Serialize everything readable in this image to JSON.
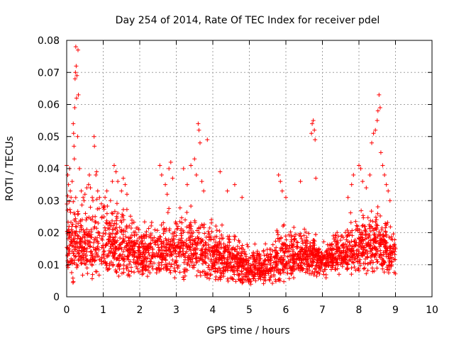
{
  "chart_data": {
    "type": "scatter",
    "title": "Day 254 of 2014, Rate Of TEC Index for receiver pdel",
    "xlabel": "GPS time / hours",
    "ylabel": "ROTI / TECUs",
    "xlim": [
      0,
      10
    ],
    "ylim": [
      0,
      0.08
    ],
    "xticks": [
      0,
      1,
      2,
      3,
      4,
      5,
      6,
      7,
      8,
      9,
      10
    ],
    "yticks": [
      0,
      0.01,
      0.02,
      0.03,
      0.04,
      0.05,
      0.06,
      0.07,
      0.08
    ],
    "ytick_labels": [
      "0",
      "0.01",
      "0.02",
      "0.03",
      "0.04",
      "0.05",
      "0.06",
      "0.07",
      "0.08"
    ],
    "grid": true,
    "marker": "+",
    "marker_color": "#ff0000",
    "data_extent_hours": [
      0,
      9
    ],
    "density_profile": [
      {
        "x": 0.0,
        "lo": 0.003,
        "hi": 0.03
      },
      {
        "x": 0.5,
        "lo": 0.004,
        "hi": 0.027
      },
      {
        "x": 1.0,
        "lo": 0.004,
        "hi": 0.03
      },
      {
        "x": 1.5,
        "lo": 0.005,
        "hi": 0.026
      },
      {
        "x": 2.0,
        "lo": 0.005,
        "hi": 0.022
      },
      {
        "x": 2.5,
        "lo": 0.005,
        "hi": 0.022
      },
      {
        "x": 3.0,
        "lo": 0.005,
        "hi": 0.026
      },
      {
        "x": 3.5,
        "lo": 0.005,
        "hi": 0.026
      },
      {
        "x": 4.0,
        "lo": 0.004,
        "hi": 0.022
      },
      {
        "x": 4.5,
        "lo": 0.004,
        "hi": 0.019
      },
      {
        "x": 5.0,
        "lo": 0.003,
        "hi": 0.015
      },
      {
        "x": 5.5,
        "lo": 0.003,
        "hi": 0.016
      },
      {
        "x": 6.0,
        "lo": 0.004,
        "hi": 0.022
      },
      {
        "x": 6.5,
        "lo": 0.005,
        "hi": 0.021
      },
      {
        "x": 7.0,
        "lo": 0.005,
        "hi": 0.018
      },
      {
        "x": 7.5,
        "lo": 0.006,
        "hi": 0.021
      },
      {
        "x": 8.0,
        "lo": 0.006,
        "hi": 0.025
      },
      {
        "x": 8.5,
        "lo": 0.006,
        "hi": 0.027
      },
      {
        "x": 9.0,
        "lo": 0.006,
        "hi": 0.018
      }
    ],
    "outlier_points": [
      [
        0.0,
        0.041
      ],
      [
        0.03,
        0.038
      ],
      [
        0.05,
        0.035
      ],
      [
        0.08,
        0.04
      ],
      [
        0.1,
        0.033
      ],
      [
        0.12,
        0.031
      ],
      [
        0.15,
        0.036
      ],
      [
        0.18,
        0.054
      ],
      [
        0.19,
        0.051
      ],
      [
        0.2,
        0.047
      ],
      [
        0.21,
        0.043
      ],
      [
        0.22,
        0.059
      ],
      [
        0.23,
        0.068
      ],
      [
        0.24,
        0.07
      ],
      [
        0.25,
        0.078
      ],
      [
        0.26,
        0.072
      ],
      [
        0.27,
        0.062
      ],
      [
        0.28,
        0.069
      ],
      [
        0.3,
        0.05
      ],
      [
        0.31,
        0.077
      ],
      [
        0.32,
        0.063
      ],
      [
        0.35,
        0.04
      ],
      [
        0.4,
        0.033
      ],
      [
        0.45,
        0.031
      ],
      [
        0.5,
        0.032
      ],
      [
        0.55,
        0.034
      ],
      [
        0.6,
        0.035
      ],
      [
        0.62,
        0.038
      ],
      [
        0.65,
        0.034
      ],
      [
        0.7,
        0.031
      ],
      [
        0.72,
        0.03
      ],
      [
        0.75,
        0.05
      ],
      [
        0.76,
        0.047
      ],
      [
        0.8,
        0.038
      ],
      [
        0.82,
        0.039
      ],
      [
        0.85,
        0.033
      ],
      [
        0.9,
        0.031
      ],
      [
        0.95,
        0.029
      ],
      [
        1.0,
        0.028
      ],
      [
        1.05,
        0.031
      ],
      [
        1.1,
        0.033
      ],
      [
        1.2,
        0.03
      ],
      [
        1.25,
        0.036
      ],
      [
        1.3,
        0.041
      ],
      [
        1.35,
        0.039
      ],
      [
        1.4,
        0.036
      ],
      [
        1.5,
        0.033
      ],
      [
        1.55,
        0.037
      ],
      [
        1.6,
        0.035
      ],
      [
        1.65,
        0.032
      ],
      [
        2.55,
        0.041
      ],
      [
        2.6,
        0.038
      ],
      [
        2.7,
        0.035
      ],
      [
        2.75,
        0.032
      ],
      [
        2.8,
        0.04
      ],
      [
        2.85,
        0.042
      ],
      [
        2.9,
        0.037
      ],
      [
        3.2,
        0.04
      ],
      [
        3.3,
        0.035
      ],
      [
        3.4,
        0.041
      ],
      [
        3.5,
        0.043
      ],
      [
        3.55,
        0.038
      ],
      [
        3.6,
        0.054
      ],
      [
        3.62,
        0.052
      ],
      [
        3.65,
        0.048
      ],
      [
        3.7,
        0.036
      ],
      [
        3.75,
        0.033
      ],
      [
        3.85,
        0.049
      ],
      [
        4.2,
        0.039
      ],
      [
        4.4,
        0.033
      ],
      [
        4.6,
        0.035
      ],
      [
        4.8,
        0.031
      ],
      [
        5.8,
        0.038
      ],
      [
        5.85,
        0.036
      ],
      [
        5.9,
        0.033
      ],
      [
        6.0,
        0.031
      ],
      [
        6.4,
        0.036
      ],
      [
        6.7,
        0.051
      ],
      [
        6.72,
        0.054
      ],
      [
        6.75,
        0.055
      ],
      [
        6.78,
        0.052
      ],
      [
        6.8,
        0.049
      ],
      [
        6.82,
        0.037
      ],
      [
        7.7,
        0.031
      ],
      [
        7.8,
        0.035
      ],
      [
        7.85,
        0.038
      ],
      [
        8.0,
        0.041
      ],
      [
        8.05,
        0.04
      ],
      [
        8.1,
        0.036
      ],
      [
        8.2,
        0.034
      ],
      [
        8.3,
        0.038
      ],
      [
        8.35,
        0.048
      ],
      [
        8.4,
        0.051
      ],
      [
        8.45,
        0.052
      ],
      [
        8.5,
        0.055
      ],
      [
        8.52,
        0.058
      ],
      [
        8.55,
        0.063
      ],
      [
        8.58,
        0.059
      ],
      [
        8.6,
        0.045
      ],
      [
        8.65,
        0.041
      ],
      [
        8.7,
        0.038
      ],
      [
        8.75,
        0.035
      ],
      [
        8.8,
        0.033
      ],
      [
        8.85,
        0.03
      ]
    ]
  }
}
